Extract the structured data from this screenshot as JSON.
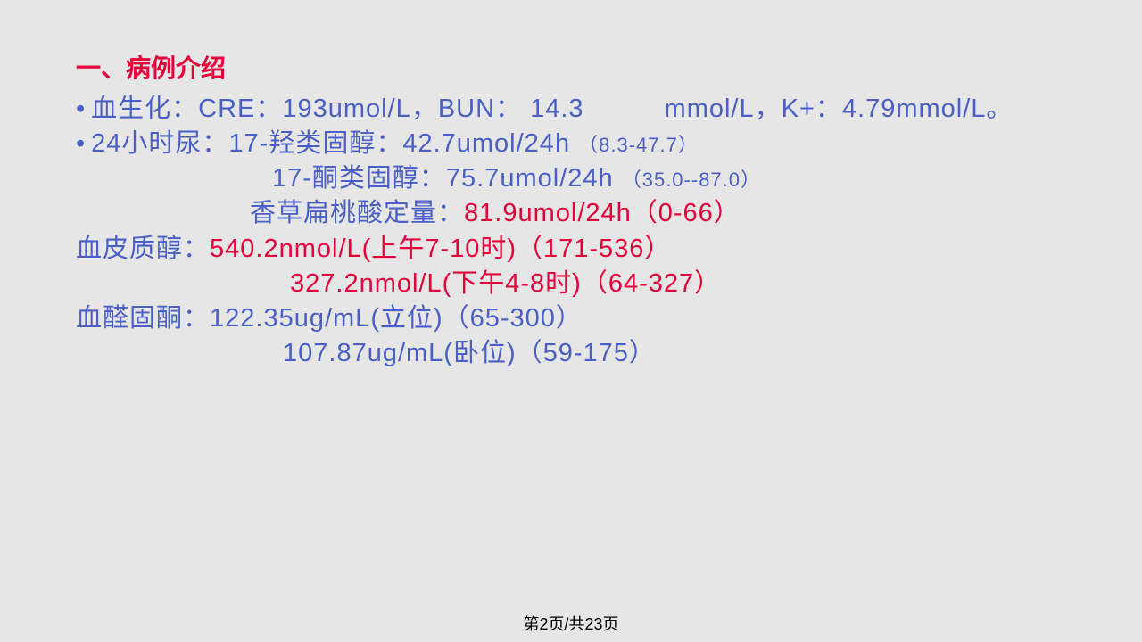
{
  "heading": "一、病例介绍",
  "line1_label": "血生化：CRE：193umol/L，BUN： 14.3　　　mmol/L，K+：4.79mmol/L。",
  "line2_label": "24小时尿：17-羟类固醇：42.7umol/24h ",
  "line2_ref": "（8.3-47.7）",
  "line3_label": "17-酮类固醇：75.7umol/24h ",
  "line3_ref": "（35.0--87.0）",
  "line4_label": "香草扁桃酸定量：",
  "line4_val": "81.9umol/24h（0-66）",
  "line5_label": "血皮质醇：",
  "line5_val": "540.2nmol/L(上午7-10时)（171-536）",
  "line6_val": "327.2nmol/L(下午4-8时)（64-327）",
  "line7_label": "血醛固酮：",
  "line7_val": "122.35ug/mL(立位)（65-300）",
  "line8_val": "107.87ug/mL(卧位)（59-175）",
  "footer": "第2页/共23页"
}
